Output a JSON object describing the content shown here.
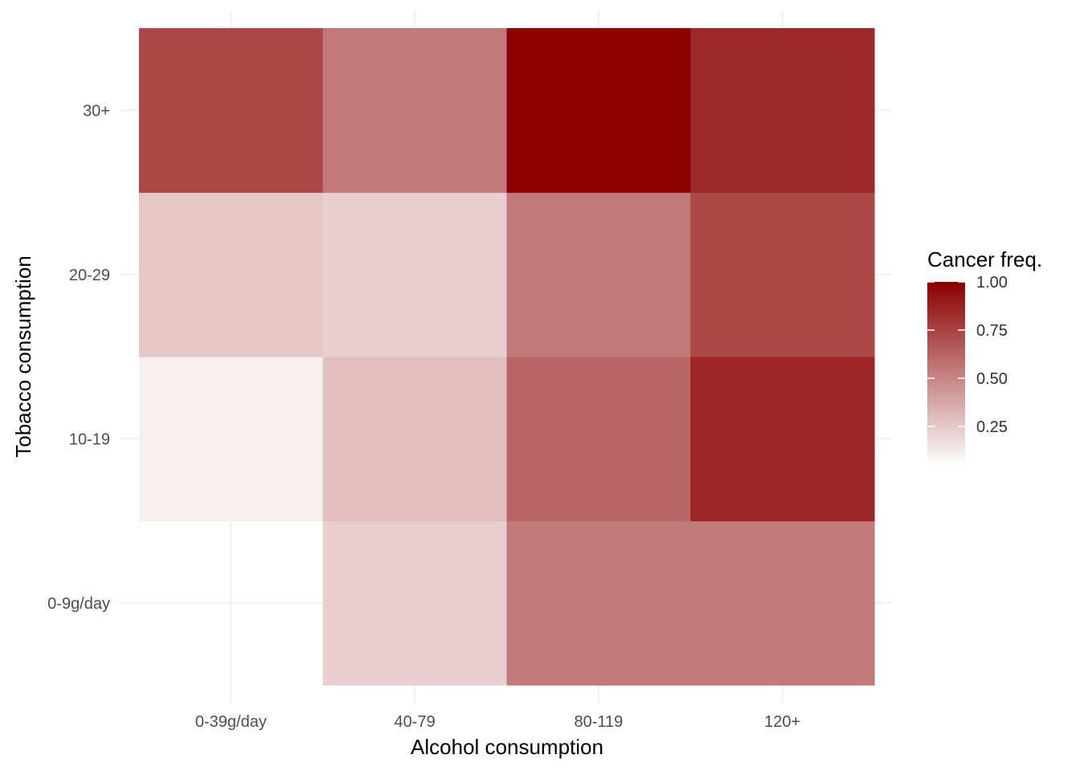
{
  "chart_data": {
    "type": "heatmap",
    "title": "",
    "xlabel": "Alcohol consumption",
    "ylabel": "Tobacco consumption",
    "x_categories": [
      "0-39g/day",
      "40-79",
      "80-119",
      "120+"
    ],
    "y_categories": [
      "0-9g/day",
      "10-19",
      "20-29",
      "30+"
    ],
    "cells": [
      {
        "x": "0-39g/day",
        "y": "10-19",
        "value": 0.11
      },
      {
        "x": "0-39g/day",
        "y": "20-29",
        "value": 0.26
      },
      {
        "x": "0-39g/day",
        "y": "30+",
        "value": 0.73
      },
      {
        "x": "40-79",
        "y": "0-9g/day",
        "value": 0.23
      },
      {
        "x": "40-79",
        "y": "10-19",
        "value": 0.29
      },
      {
        "x": "40-79",
        "y": "20-29",
        "value": 0.23
      },
      {
        "x": "40-79",
        "y": "30+",
        "value": 0.55
      },
      {
        "x": "80-119",
        "y": "0-9g/day",
        "value": 0.55
      },
      {
        "x": "80-119",
        "y": "10-19",
        "value": 0.62
      },
      {
        "x": "80-119",
        "y": "20-29",
        "value": 0.55
      },
      {
        "x": "80-119",
        "y": "30+",
        "value": 1.0
      },
      {
        "x": "120+",
        "y": "0-9g/day",
        "value": 0.55
      },
      {
        "x": "120+",
        "y": "10-19",
        "value": 0.86
      },
      {
        "x": "120+",
        "y": "20-29",
        "value": 0.73
      },
      {
        "x": "120+",
        "y": "30+",
        "value": 0.85
      }
    ],
    "legend": {
      "title": "Cancer freq.",
      "position": "right",
      "breaks": [
        0.25,
        0.5,
        0.75,
        1.0
      ],
      "break_labels": [
        "0.25",
        "0.50",
        "0.75",
        "1.00"
      ],
      "limits": [
        0.05,
        1.0
      ],
      "low_color": "#ffffff",
      "high_color": "#8b0000"
    },
    "grid": true
  }
}
